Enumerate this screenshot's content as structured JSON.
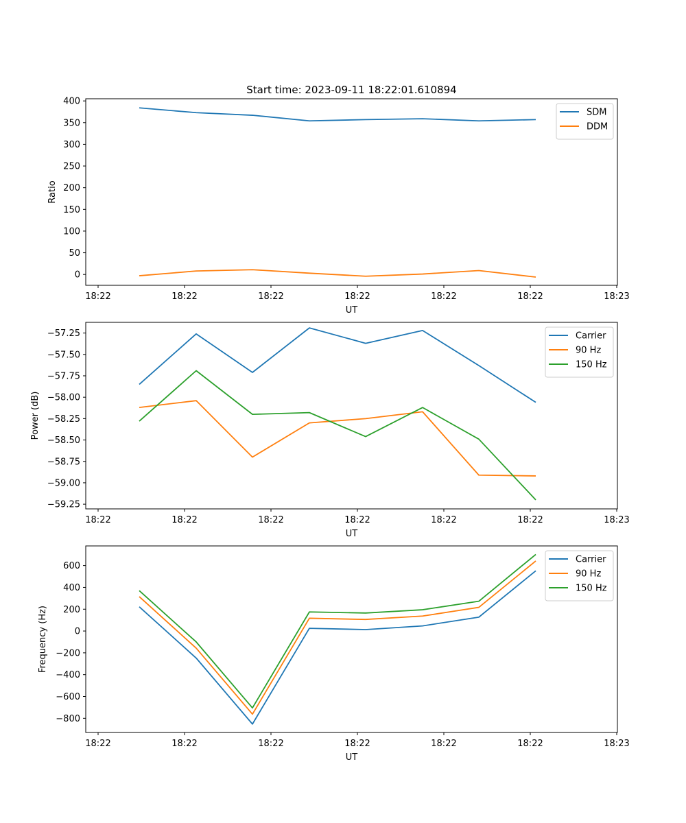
{
  "chart_data": [
    {
      "type": "line",
      "title": "Start time: 2023-09-11 18:22:01.610894",
      "xlabel": "UT",
      "ylabel": "Ratio",
      "x_tick_labels": [
        "18:22",
        "18:22",
        "18:22",
        "18:22",
        "18:22",
        "18:22",
        "18:23"
      ],
      "ylim": [
        -25,
        405
      ],
      "yticks": [
        0,
        50,
        100,
        150,
        200,
        250,
        300,
        350,
        400
      ],
      "y_tick_labels": [
        "0",
        "50",
        "100",
        "150",
        "200",
        "250",
        "300",
        "350",
        "400"
      ],
      "legend_position": "top-right",
      "series": [
        {
          "name": "SDM",
          "color": "#1f77b4",
          "values": [
            384,
            373,
            367,
            354,
            357,
            359,
            354,
            357
          ]
        },
        {
          "name": "DDM",
          "color": "#ff7f0e",
          "values": [
            -3,
            8,
            11,
            3,
            -4,
            1,
            9,
            -6
          ]
        }
      ]
    },
    {
      "type": "line",
      "title": "",
      "xlabel": "UT",
      "ylabel": "Power (dB)",
      "x_tick_labels": [
        "18:22",
        "18:22",
        "18:22",
        "18:22",
        "18:22",
        "18:22",
        "18:23"
      ],
      "ylim": [
        -59.305,
        -57.125
      ],
      "yticks": [
        -57.25,
        -57.5,
        -57.75,
        -58.0,
        -58.25,
        -58.5,
        -58.75,
        -59.0,
        -59.25
      ],
      "y_tick_labels": [
        "−57.25",
        "−57.50",
        "−57.75",
        "−58.00",
        "−58.25",
        "−58.50",
        "−58.75",
        "−59.00",
        "−59.25"
      ],
      "legend_position": "top-right",
      "series": [
        {
          "name": "Carrier",
          "color": "#1f77b4",
          "values": [
            -57.85,
            -57.26,
            -57.71,
            -57.19,
            -57.37,
            -57.22,
            -57.63,
            -58.06
          ]
        },
        {
          "name": "90 Hz",
          "color": "#ff7f0e",
          "values": [
            -58.12,
            -58.04,
            -58.7,
            -58.3,
            -58.25,
            -58.17,
            -58.91,
            -58.92
          ]
        },
        {
          "name": "150 Hz",
          "color": "#2ca02c",
          "values": [
            -58.28,
            -57.69,
            -58.2,
            -58.18,
            -58.46,
            -58.12,
            -58.49,
            -59.2
          ]
        }
      ]
    },
    {
      "type": "line",
      "title": "",
      "xlabel": "UT",
      "ylabel": "Frequency (Hz)",
      "x_tick_labels": [
        "18:22",
        "18:22",
        "18:22",
        "18:22",
        "18:22",
        "18:22",
        "18:23"
      ],
      "ylim": [
        -930,
        780
      ],
      "yticks": [
        600,
        400,
        200,
        0,
        -200,
        -400,
        -600,
        -800
      ],
      "y_tick_labels": [
        "600",
        "400",
        "200",
        "0",
        "−200",
        "−400",
        "−600",
        "−800"
      ],
      "legend_position": "top-right",
      "series": [
        {
          "name": "Carrier",
          "color": "#1f77b4",
          "values": [
            222,
            -248,
            -853,
            25,
            13,
            47,
            127,
            552
          ]
        },
        {
          "name": "90 Hz",
          "color": "#ff7f0e",
          "values": [
            315,
            -157,
            -762,
            117,
            106,
            137,
            217,
            642
          ]
        },
        {
          "name": "150 Hz",
          "color": "#2ca02c",
          "values": [
            370,
            -100,
            -705,
            175,
            165,
            195,
            273,
            702
          ]
        }
      ]
    }
  ]
}
